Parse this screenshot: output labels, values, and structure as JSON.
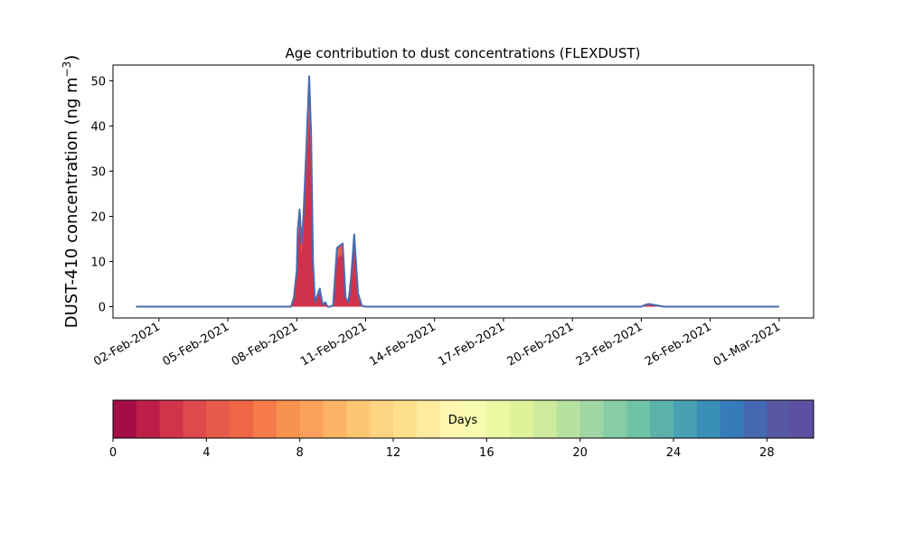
{
  "chart_data": {
    "type": "area",
    "title": "Age contribution to dust concentrations (FLEXDUST)",
    "ylabel_main": "DUST-410 concentration (ng m",
    "ylabel_sup": "−3",
    "ylabel_close": ")",
    "xlabel": "",
    "ylim": [
      -2.5,
      53.5
    ],
    "y_ticks": [
      0,
      10,
      20,
      30,
      40,
      50
    ],
    "y_tick_labels": [
      "0",
      "10",
      "20",
      "30",
      "40",
      "50"
    ],
    "x_range": [
      "2021-01-31T00:00",
      "2021-03-02T12:00"
    ],
    "x_ticks": [
      "2021-02-02",
      "2021-02-05",
      "2021-02-08",
      "2021-02-11",
      "2021-02-14",
      "2021-02-17",
      "2021-02-20",
      "2021-02-23",
      "2021-02-26",
      "2021-03-01"
    ],
    "x_tick_labels": [
      "02-Feb-2021",
      "05-Feb-2021",
      "08-Feb-2021",
      "11-Feb-2021",
      "14-Feb-2021",
      "17-Feb-2021",
      "20-Feb-2021",
      "23-Feb-2021",
      "26-Feb-2021",
      "01-Mar-2021"
    ],
    "grid": false,
    "total_series": {
      "x": [
        "2021-02-01T00:00",
        "2021-02-07T18:00",
        "2021-02-07T21:00",
        "2021-02-08T00:00",
        "2021-02-08T01:00",
        "2021-02-08T03:00",
        "2021-02-08T05:00",
        "2021-02-08T07:00",
        "2021-02-08T10:00",
        "2021-02-08T13:00",
        "2021-02-08T15:00",
        "2021-02-08T17:00",
        "2021-02-08T19:00",
        "2021-02-09T00:00",
        "2021-02-09T03:00",
        "2021-02-09T06:00",
        "2021-02-09T08:00",
        "2021-02-09T11:00",
        "2021-02-09T14:00",
        "2021-02-09T18:00",
        "2021-02-10T00:00",
        "2021-02-10T03:00",
        "2021-02-10T06:00",
        "2021-02-10T09:00",
        "2021-02-10T12:00",
        "2021-02-10T16:00",
        "2021-02-10T20:00",
        "2021-02-11T00:00",
        "2021-02-23T00:00",
        "2021-02-23T04:00",
        "2021-02-23T08:00",
        "2021-02-24T00:00",
        "2021-03-01T00:00"
      ],
      "y": [
        0,
        0,
        2,
        8,
        17,
        21.5,
        14,
        20,
        35,
        51,
        38,
        10,
        1,
        4,
        0.5,
        1,
        0,
        0,
        0.3,
        13,
        14,
        2,
        1,
        7,
        16,
        3,
        0.2,
        0,
        0,
        0.4,
        0.6,
        0,
        0
      ]
    },
    "young_fraction": 0.83,
    "colorbar": {
      "label": "Days",
      "range": [
        0,
        30
      ],
      "ticks": [
        0,
        4,
        8,
        12,
        16,
        20,
        24,
        28
      ],
      "tick_labels": [
        "0",
        "4",
        "8",
        "12",
        "16",
        "20",
        "24",
        "28"
      ],
      "colors": [
        "#a50e45",
        "#bd1f48",
        "#d1334b",
        "#dc4a4c",
        "#e65b4a",
        "#ef6645",
        "#f57c4a",
        "#f8924f",
        "#fba05b",
        "#fdb366",
        "#fdc673",
        "#fdd481",
        "#fee08b",
        "#feeb9d",
        "#fff6b1",
        "#f6fbb1",
        "#ebf7a1",
        "#dff299",
        "#cceb9d",
        "#b6e1a0",
        "#9fd6a4",
        "#86cda6",
        "#6fc3a8",
        "#5cb1ab",
        "#4aa0b3",
        "#3a8fb9",
        "#367cbb",
        "#4569b1",
        "#5757a3",
        "#5e4fa2"
      ]
    },
    "outline_color": "#4a6bb0",
    "fill_young_color": "#d0324b",
    "fill_old_color": "#e65b4a"
  }
}
